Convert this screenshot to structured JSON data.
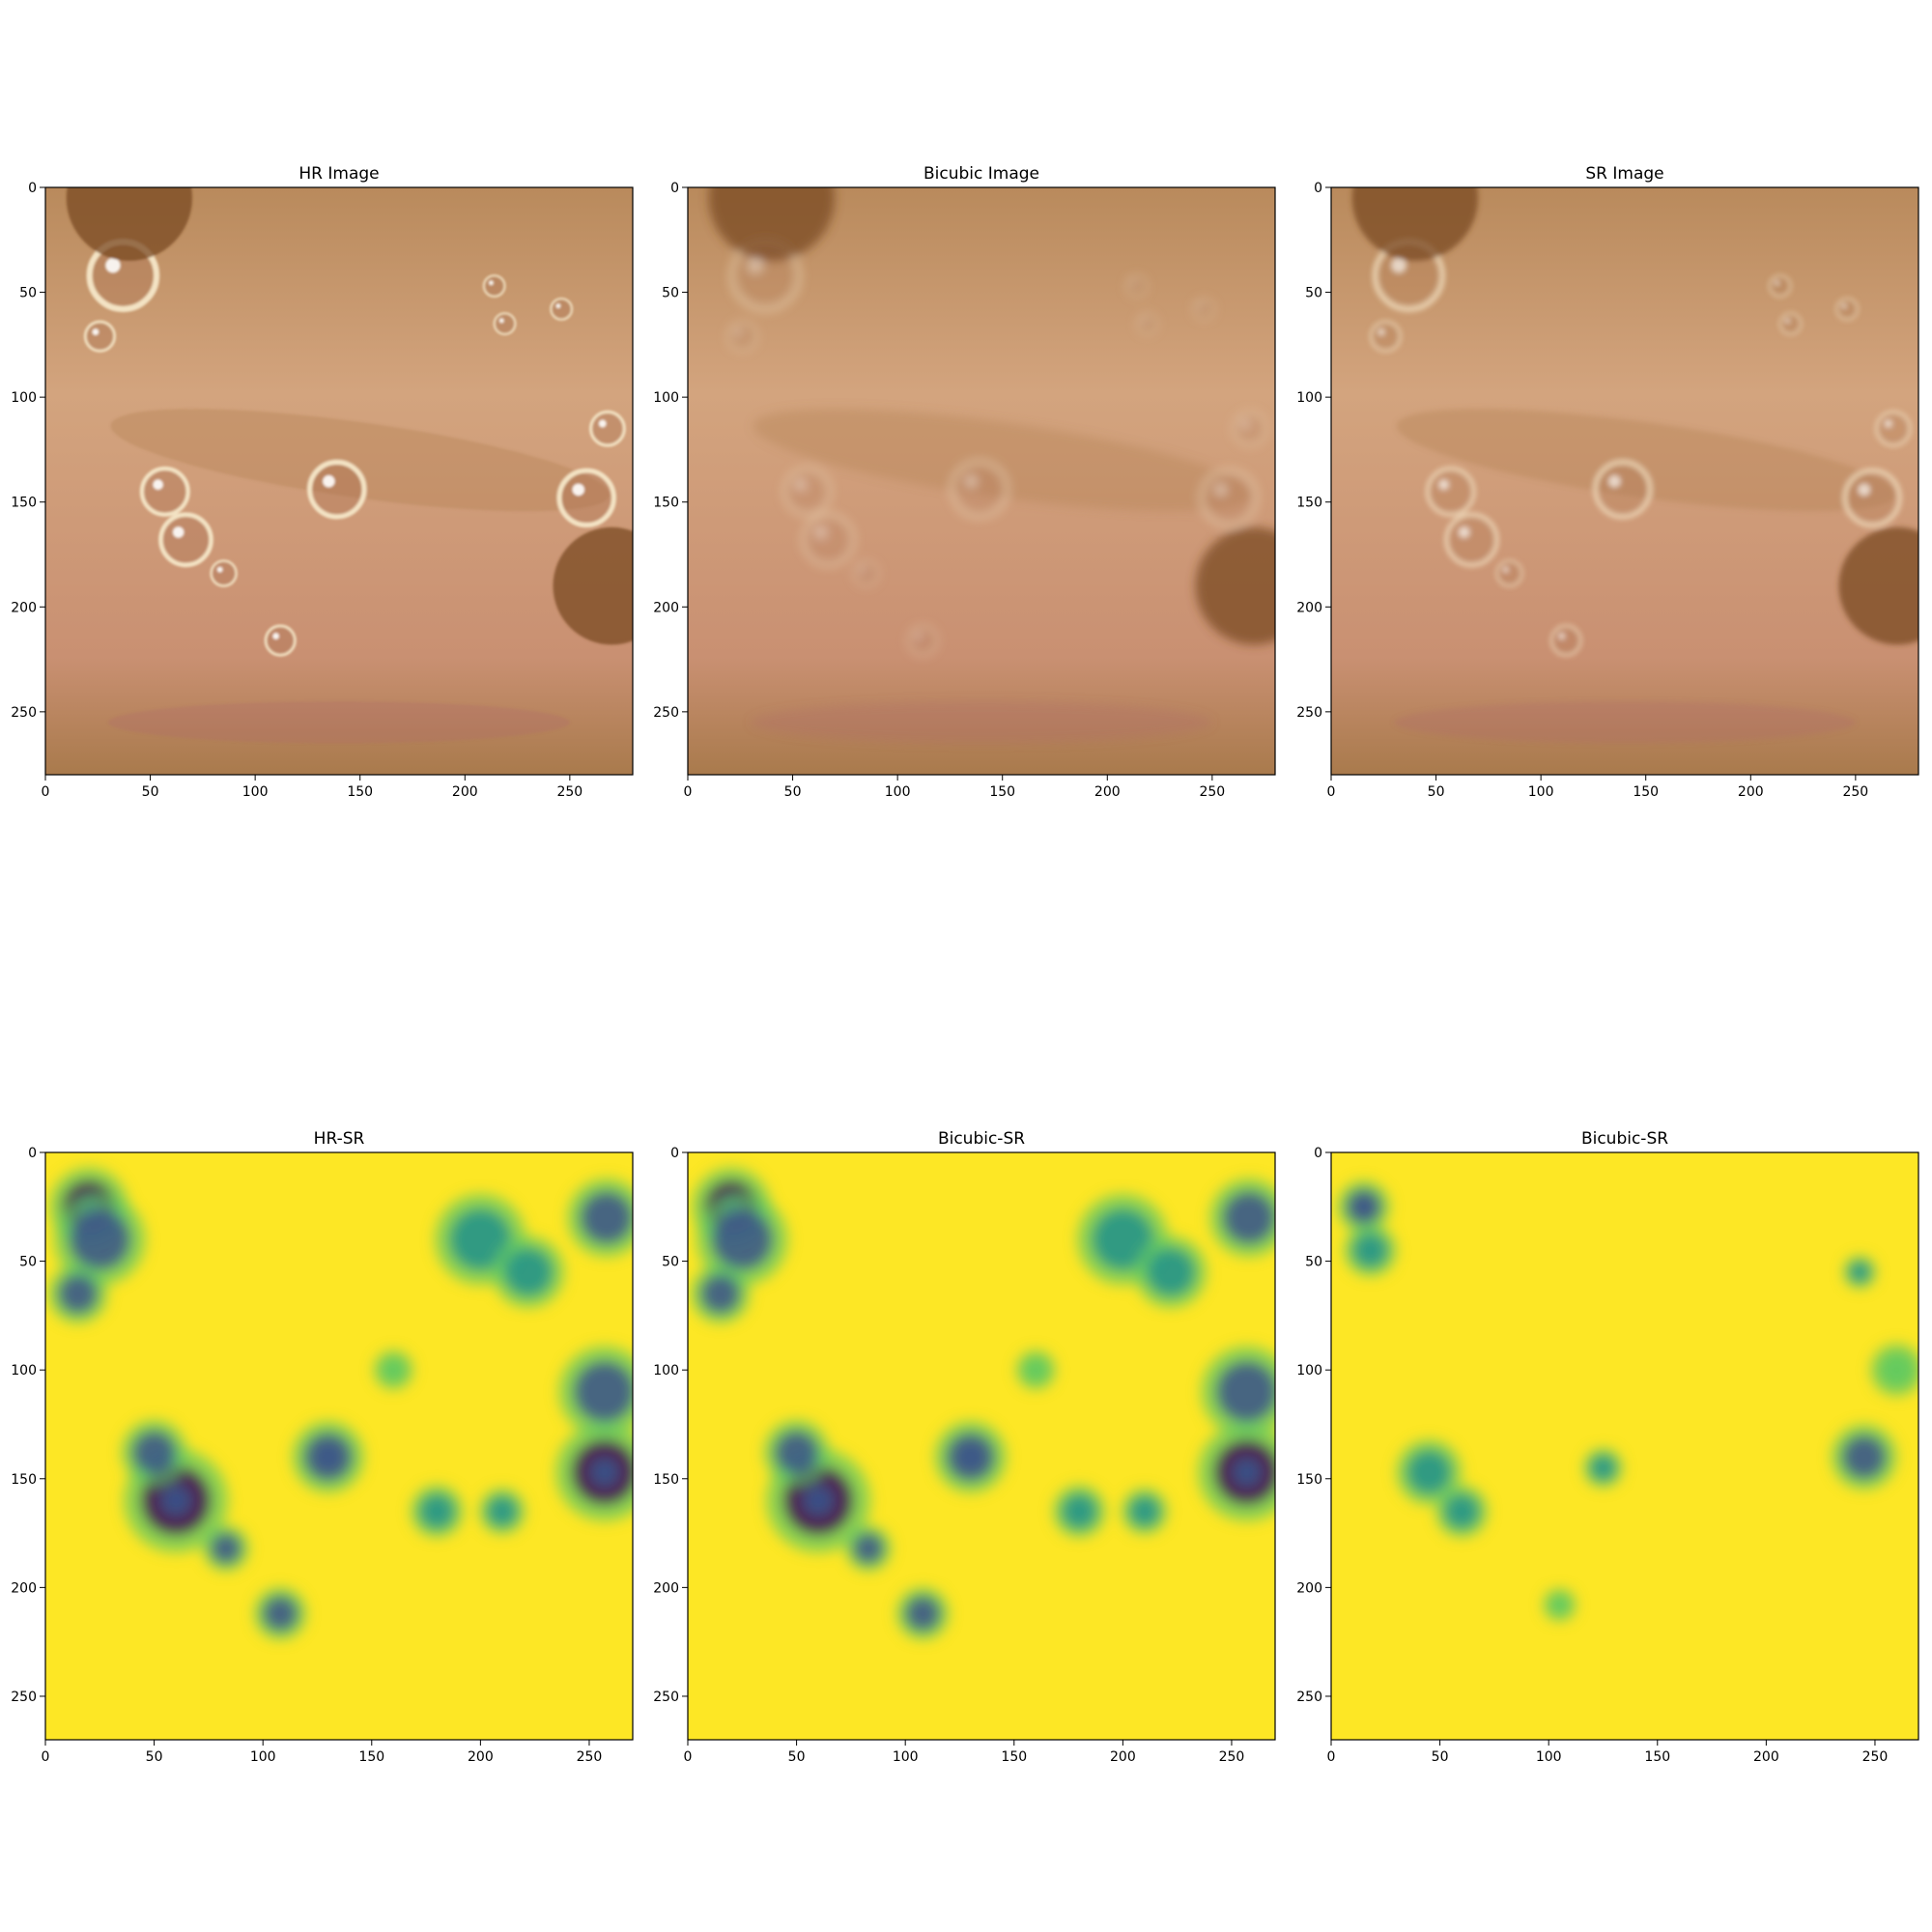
{
  "colors": {
    "background": "#ffffff",
    "axis": "#000000",
    "photo_base": "#c99a72",
    "photo_dark": "#7a4a24",
    "photo_bubble": "#f3e3c4",
    "viridis_yellow": "#fde725",
    "viridis_green": "#5ec962",
    "viridis_teal": "#21918c",
    "viridis_blue": "#3b528b",
    "viridis_purple": "#440154"
  },
  "chart_data": [
    {
      "type": "image",
      "title": "HR Image",
      "image": "endoscopy-photo-sharp",
      "xlim": [
        0,
        280
      ],
      "ylim": [
        280,
        0
      ],
      "xticks": [
        0,
        50,
        100,
        150,
        200,
        250
      ],
      "yticks": [
        0,
        50,
        100,
        150,
        200,
        250
      ],
      "features": [
        {
          "kind": "bubble",
          "x": 37,
          "y": 42,
          "r": 16
        },
        {
          "kind": "bubble",
          "x": 26,
          "y": 71,
          "r": 7
        },
        {
          "kind": "bubble",
          "x": 57,
          "y": 145,
          "r": 11
        },
        {
          "kind": "bubble",
          "x": 67,
          "y": 168,
          "r": 12
        },
        {
          "kind": "bubble",
          "x": 85,
          "y": 184,
          "r": 6
        },
        {
          "kind": "bubble",
          "x": 139,
          "y": 144,
          "r": 13
        },
        {
          "kind": "bubble",
          "x": 112,
          "y": 216,
          "r": 7
        },
        {
          "kind": "bubble",
          "x": 258,
          "y": 148,
          "r": 13
        },
        {
          "kind": "bubble",
          "x": 214,
          "y": 47,
          "r": 5
        },
        {
          "kind": "bubble",
          "x": 219,
          "y": 65,
          "r": 5
        },
        {
          "kind": "bubble",
          "x": 246,
          "y": 58,
          "r": 5
        },
        {
          "kind": "bubble",
          "x": 268,
          "y": 115,
          "r": 8
        },
        {
          "kind": "dark",
          "x": 40,
          "y": 5,
          "r": 30
        },
        {
          "kind": "dark",
          "x": 270,
          "y": 190,
          "r": 28
        }
      ]
    },
    {
      "type": "image",
      "title": "Bicubic Image",
      "image": "endoscopy-photo-blurred",
      "xlim": [
        0,
        280
      ],
      "ylim": [
        280,
        0
      ],
      "xticks": [
        0,
        50,
        100,
        150,
        200,
        250
      ],
      "yticks": [
        0,
        50,
        100,
        150,
        200,
        250
      ]
    },
    {
      "type": "image",
      "title": "SR Image",
      "image": "endoscopy-photo-super-resolved",
      "xlim": [
        0,
        280
      ],
      "ylim": [
        280,
        0
      ],
      "xticks": [
        0,
        50,
        100,
        150,
        200,
        250
      ],
      "yticks": [
        0,
        50,
        100,
        150,
        200,
        250
      ]
    },
    {
      "type": "heatmap",
      "title": "HR-SR",
      "colormap": "viridis",
      "xlim": [
        0,
        270
      ],
      "ylim": [
        270,
        0
      ],
      "xticks": [
        0,
        50,
        100,
        150,
        200,
        250
      ],
      "yticks": [
        0,
        50,
        100,
        150,
        200,
        250
      ],
      "spots": [
        {
          "x": 20,
          "y": 25,
          "r": 12,
          "level": 0.9
        },
        {
          "x": 25,
          "y": 40,
          "r": 14,
          "level": 0.7
        },
        {
          "x": 15,
          "y": 65,
          "r": 9,
          "level": 0.75
        },
        {
          "x": 60,
          "y": 160,
          "r": 16,
          "level": 0.95
        },
        {
          "x": 50,
          "y": 138,
          "r": 10,
          "level": 0.75
        },
        {
          "x": 83,
          "y": 182,
          "r": 7,
          "level": 0.7
        },
        {
          "x": 130,
          "y": 140,
          "r": 11,
          "level": 0.85
        },
        {
          "x": 108,
          "y": 212,
          "r": 8,
          "level": 0.75
        },
        {
          "x": 200,
          "y": 40,
          "r": 14,
          "level": 0.6
        },
        {
          "x": 222,
          "y": 55,
          "r": 11,
          "level": 0.55
        },
        {
          "x": 258,
          "y": 30,
          "r": 12,
          "level": 0.7
        },
        {
          "x": 257,
          "y": 110,
          "r": 14,
          "level": 0.65
        },
        {
          "x": 257,
          "y": 147,
          "r": 15,
          "level": 0.9
        },
        {
          "x": 180,
          "y": 165,
          "r": 8,
          "level": 0.4
        },
        {
          "x": 210,
          "y": 165,
          "r": 7,
          "level": 0.4
        },
        {
          "x": 160,
          "y": 100,
          "r": 6,
          "level": 0.3
        }
      ]
    },
    {
      "type": "heatmap",
      "title": "Bicubic-SR",
      "colormap": "viridis",
      "xlim": [
        0,
        270
      ],
      "ylim": [
        270,
        0
      ],
      "xticks": [
        0,
        50,
        100,
        150,
        200,
        250
      ],
      "yticks": [
        0,
        50,
        100,
        150,
        200,
        250
      ],
      "spots": [
        {
          "x": 20,
          "y": 25,
          "r": 12,
          "level": 0.9
        },
        {
          "x": 25,
          "y": 40,
          "r": 14,
          "level": 0.7
        },
        {
          "x": 15,
          "y": 65,
          "r": 9,
          "level": 0.75
        },
        {
          "x": 60,
          "y": 160,
          "r": 16,
          "level": 0.95
        },
        {
          "x": 50,
          "y": 138,
          "r": 10,
          "level": 0.75
        },
        {
          "x": 83,
          "y": 182,
          "r": 7,
          "level": 0.7
        },
        {
          "x": 130,
          "y": 140,
          "r": 11,
          "level": 0.85
        },
        {
          "x": 108,
          "y": 212,
          "r": 8,
          "level": 0.75
        },
        {
          "x": 200,
          "y": 40,
          "r": 14,
          "level": 0.6
        },
        {
          "x": 222,
          "y": 55,
          "r": 11,
          "level": 0.55
        },
        {
          "x": 258,
          "y": 30,
          "r": 12,
          "level": 0.7
        },
        {
          "x": 257,
          "y": 110,
          "r": 14,
          "level": 0.65
        },
        {
          "x": 257,
          "y": 147,
          "r": 15,
          "level": 0.9
        },
        {
          "x": 180,
          "y": 165,
          "r": 8,
          "level": 0.4
        },
        {
          "x": 210,
          "y": 165,
          "r": 7,
          "level": 0.4
        },
        {
          "x": 160,
          "y": 100,
          "r": 6,
          "level": 0.3
        }
      ]
    },
    {
      "type": "heatmap",
      "title": "Bicubic-SR",
      "colormap": "viridis",
      "xlim": [
        0,
        270
      ],
      "ylim": [
        270,
        0
      ],
      "xticks": [
        0,
        50,
        100,
        150,
        200,
        250
      ],
      "yticks": [
        0,
        50,
        100,
        150,
        200,
        250
      ],
      "spots": [
        {
          "x": 15,
          "y": 25,
          "r": 8,
          "level": 0.85
        },
        {
          "x": 18,
          "y": 45,
          "r": 8,
          "level": 0.5
        },
        {
          "x": 45,
          "y": 147,
          "r": 10,
          "level": 0.6
        },
        {
          "x": 60,
          "y": 165,
          "r": 8,
          "level": 0.55
        },
        {
          "x": 125,
          "y": 145,
          "r": 6,
          "level": 0.55
        },
        {
          "x": 245,
          "y": 140,
          "r": 10,
          "level": 0.65
        },
        {
          "x": 243,
          "y": 55,
          "r": 5,
          "level": 0.4
        },
        {
          "x": 105,
          "y": 208,
          "r": 5,
          "level": 0.3
        },
        {
          "x": 260,
          "y": 100,
          "r": 8,
          "level": 0.3
        }
      ]
    }
  ]
}
